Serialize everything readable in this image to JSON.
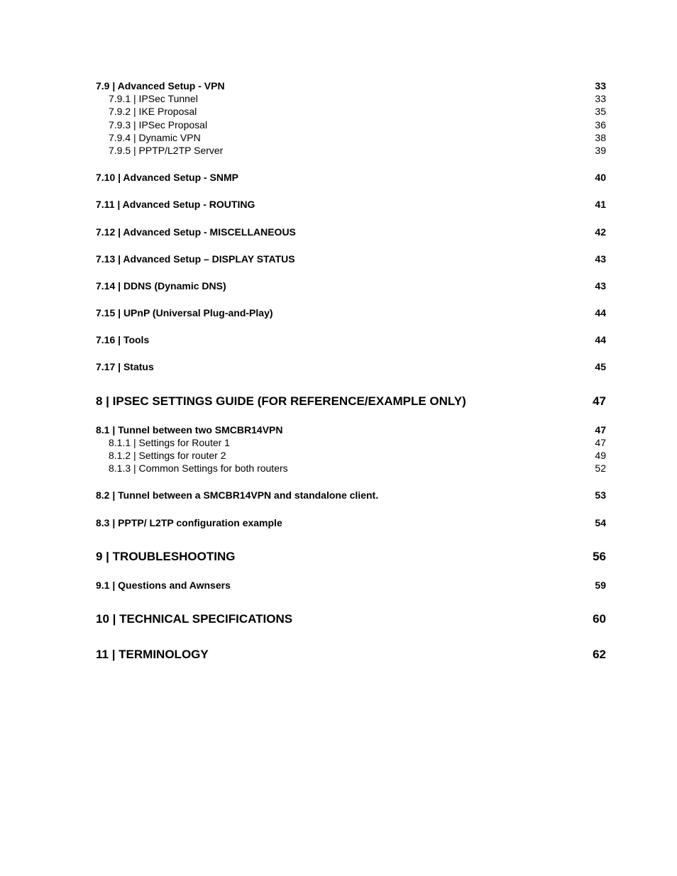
{
  "toc": {
    "sections": [
      {
        "header": {
          "label": "7.9 | Advanced Setup - VPN",
          "page": "33"
        },
        "subs": [
          {
            "label": "7.9.1 | IPSec Tunnel",
            "page": "33"
          },
          {
            "label": "7.9.2 | IKE Proposal",
            "page": "35"
          },
          {
            "label": "7.9.3 | IPSec Proposal",
            "page": "36"
          },
          {
            "label": "7.9.4 | Dynamic VPN",
            "page": "38"
          },
          {
            "label": "7.9.5 | PPTP/L2TP Server",
            "page": "39"
          }
        ]
      },
      {
        "header": {
          "label": "7.10 | Advanced Setup - SNMP",
          "page": "40"
        },
        "subs": []
      },
      {
        "header": {
          "label": "7.11 | Advanced Setup - ROUTING",
          "page": "41"
        },
        "subs": []
      },
      {
        "header": {
          "label": "7.12 | Advanced Setup - MISCELLANEOUS",
          "page": "42"
        },
        "subs": []
      },
      {
        "header": {
          "label": "7.13 | Advanced Setup – DISPLAY STATUS",
          "page": "43"
        },
        "subs": []
      },
      {
        "header": {
          "label": "7.14 | DDNS (Dynamic DNS)",
          "page": "43"
        },
        "subs": []
      },
      {
        "header": {
          "label": "7.15 | UPnP (Universal Plug-and-Play)",
          "page": "44"
        },
        "subs": []
      },
      {
        "header": {
          "label": "7.16 | Tools",
          "page": "44"
        },
        "subs": []
      },
      {
        "header": {
          "label": "7.17 | Status",
          "page": "45"
        },
        "subs": []
      }
    ],
    "chapter8": {
      "label": "8 | IPSEC SETTINGS GUIDE (FOR REFERENCE/EXAMPLE ONLY)",
      "page": "47"
    },
    "ch8_sections": [
      {
        "header": {
          "label": "8.1 | Tunnel between two SMCBR14VPN",
          "page": "47"
        },
        "subs": [
          {
            "label": "8.1.1 | Settings for Router 1",
            "page": "47"
          },
          {
            "label": "8.1.2 | Settings for router 2",
            "page": "49"
          },
          {
            "label": "8.1.3 | Common Settings for both routers",
            "page": "52"
          }
        ]
      },
      {
        "header": {
          "label": "8.2 | Tunnel between a SMCBR14VPN and standalone client.",
          "page": "53"
        },
        "subs": []
      },
      {
        "header": {
          "label": "8.3 | PPTP/ L2TP configuration example",
          "page": "54"
        },
        "subs": []
      }
    ],
    "chapter9": {
      "label": "9 | TROUBLESHOOTING",
      "page": "56"
    },
    "ch9_sections": [
      {
        "header": {
          "label": "9.1 | Questions and Awnsers",
          "page": "59"
        },
        "subs": []
      }
    ],
    "chapter10": {
      "label": "10 | TECHNICAL SPECIFICATIONS",
      "page": "60"
    },
    "chapter11": {
      "label": "11 | TERMINOLOGY",
      "page": "62"
    }
  }
}
